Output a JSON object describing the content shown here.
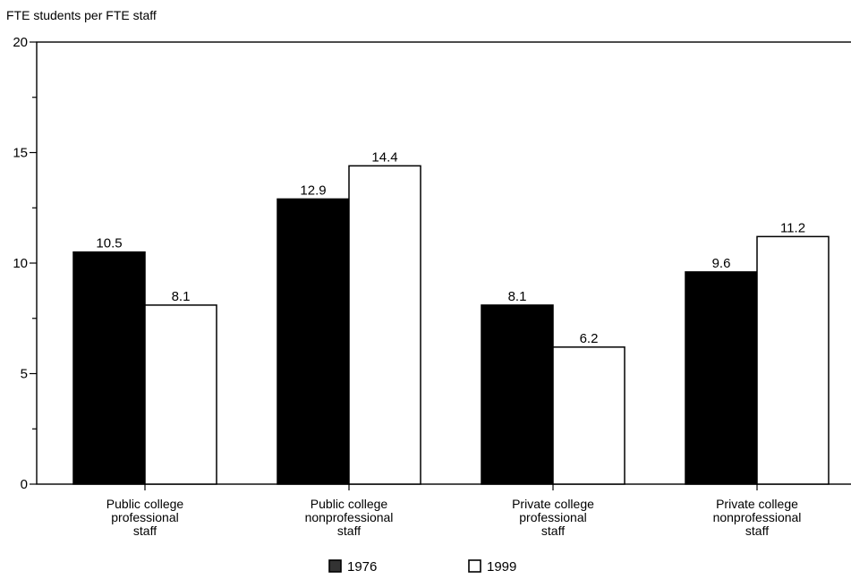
{
  "chart_data": {
    "type": "bar",
    "ylabel": "FTE students per FTE staff",
    "ylim": [
      0,
      20
    ],
    "yticks": [
      "0",
      "5",
      "10",
      "15",
      "20"
    ],
    "categories": [
      [
        "Public college",
        "professional",
        "staff"
      ],
      [
        "Public college",
        "nonprofessional",
        "staff"
      ],
      [
        "Private college",
        "professional",
        "staff"
      ],
      [
        "Private college",
        "nonprofessional",
        "staff"
      ]
    ],
    "series": [
      {
        "name": "1976",
        "values": [
          10.5,
          12.9,
          8.1,
          9.6
        ],
        "labels": [
          "10.5",
          "12.9",
          "8.1",
          "9.6"
        ],
        "color": "#000000"
      },
      {
        "name": "1999",
        "values": [
          8.1,
          14.4,
          6.2,
          11.2
        ],
        "labels": [
          "8.1",
          "14.4",
          "6.2",
          "11.2"
        ],
        "color": "#ffffff"
      }
    ],
    "grid": false,
    "legend_position": "bottom"
  }
}
